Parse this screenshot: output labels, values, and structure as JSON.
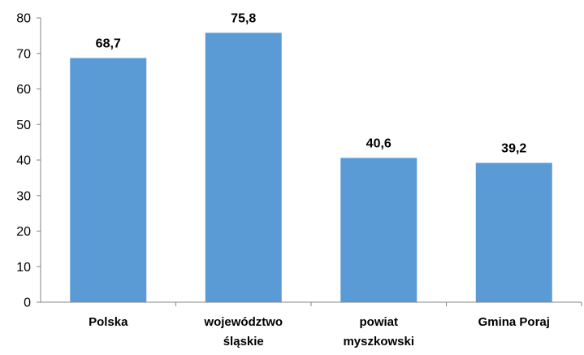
{
  "chart_data": {
    "type": "bar",
    "categories": [
      [
        "Polska"
      ],
      [
        "województwo",
        "śląskie"
      ],
      [
        "powiat",
        "myszkowski"
      ],
      [
        "Gmina Poraj"
      ]
    ],
    "values": [
      68.7,
      75.8,
      40.6,
      39.2
    ],
    "value_labels": [
      "68,7",
      "75,8",
      "40,6",
      "39,2"
    ],
    "ylim": [
      0,
      80
    ],
    "y_ticks": [
      0,
      10,
      20,
      30,
      40,
      50,
      60,
      70,
      80
    ],
    "title": "",
    "xlabel": "",
    "ylabel": "",
    "grid": false,
    "legend": "none",
    "bar_color": "#5B9BD5",
    "axis_color": "#868686"
  }
}
